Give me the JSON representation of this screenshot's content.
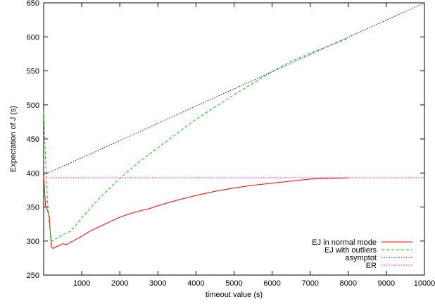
{
  "chart_data": {
    "type": "line",
    "title": "",
    "xlabel": "timeout value (s)",
    "ylabel": "Expectation of J (s)",
    "xlim": [
      0,
      10000
    ],
    "ylim": [
      250,
      650
    ],
    "x_ticks": [
      1000,
      2000,
      3000,
      4000,
      5000,
      6000,
      7000,
      8000,
      9000,
      10000
    ],
    "y_ticks": [
      250,
      300,
      350,
      400,
      450,
      500,
      550,
      600,
      650
    ],
    "grid": false,
    "legend_position": "bottom-right",
    "series": [
      {
        "name": "EJ in normal mode",
        "color": "#ff0000",
        "dash": "solid",
        "x": [
          0,
          50,
          100,
          150,
          200,
          250,
          300,
          400,
          500,
          600,
          700,
          800,
          1000,
          1200,
          1500,
          1800,
          2000,
          2200,
          2500,
          2800,
          3000,
          3500,
          4000,
          4500,
          5000,
          5500,
          6000,
          6500,
          7000,
          7500,
          8000
        ],
        "y": [
          395,
          352,
          345,
          335,
          292,
          289,
          291,
          293,
          296,
          295,
          298,
          301,
          307,
          314,
          322,
          330,
          335,
          339,
          344,
          348,
          352,
          360,
          367,
          373,
          378,
          382,
          385,
          388,
          391,
          392,
          393
        ]
      },
      {
        "name": "EJ with outliers",
        "color": "#00cc00",
        "dash": "dashed",
        "x": [
          0,
          50,
          100,
          150,
          200,
          250,
          300,
          400,
          500,
          600,
          700,
          800,
          1000,
          1200,
          1500,
          2000,
          2500,
          3000,
          3500,
          4000,
          4500,
          5000,
          5500,
          6000,
          6500,
          7000,
          7500,
          8000
        ],
        "y": [
          490,
          420,
          360,
          325,
          302,
          300,
          303,
          306,
          309,
          312,
          314,
          320,
          334,
          347,
          365,
          392,
          416,
          437,
          458,
          479,
          497,
          515,
          532,
          549,
          564,
          576,
          587,
          598
        ]
      },
      {
        "name": "asymptotic",
        "legend_text": "asymptot",
        "color": "#0000cc",
        "dash": "dotted",
        "x": [
          0,
          10000
        ],
        "y": [
          397,
          650
        ]
      },
      {
        "name": "ER",
        "color": "#ff00ff",
        "dash": "dotted",
        "x": [
          0,
          10000
        ],
        "y": [
          393,
          393
        ]
      }
    ]
  }
}
